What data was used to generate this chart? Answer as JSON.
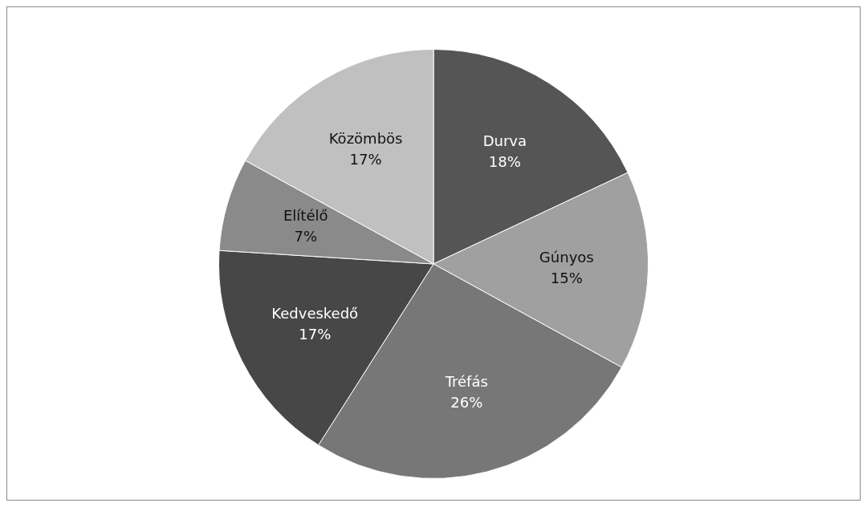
{
  "chart_data": {
    "type": "pie",
    "categories": [
      "Durva",
      "Gúnyos",
      "Tréfás",
      "Kedveskedő",
      "Elítélő",
      "Közömbös"
    ],
    "values": [
      18,
      15,
      26,
      17,
      7,
      17
    ],
    "value_labels": [
      "18%",
      "15%",
      "26%",
      "17%",
      "7%",
      "17%"
    ],
    "colors": [
      "#555555",
      "#a0a0a0",
      "#777777",
      "#474747",
      "#8a8a8a",
      "#c0c0c0"
    ],
    "legend": false
  }
}
